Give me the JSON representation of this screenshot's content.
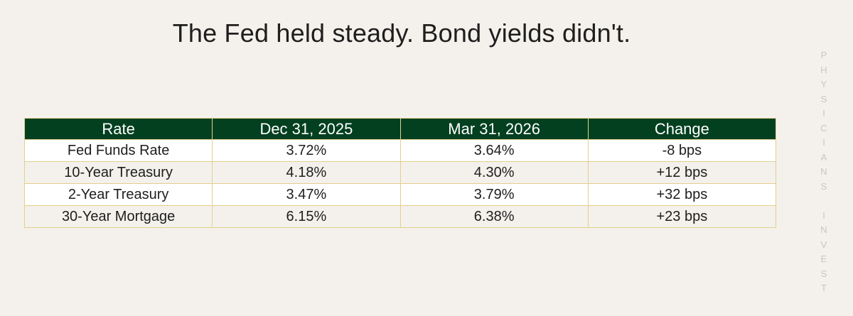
{
  "title": "The Fed held steady. Bond yields didn't.",
  "watermark": "PHYSICIANS INVEST",
  "table": {
    "headers": [
      "Rate",
      "Dec 31, 2025",
      "Mar 31, 2026",
      "Change"
    ],
    "rows": [
      [
        "Fed Funds Rate",
        "3.72%",
        "3.64%",
        "-8 bps"
      ],
      [
        "10-Year Treasury",
        "4.18%",
        "4.30%",
        "+12 bps"
      ],
      [
        "2-Year Treasury",
        "3.47%",
        "3.79%",
        "+32 bps"
      ],
      [
        "30-Year Mortgage",
        "6.15%",
        "6.38%",
        "+23 bps"
      ]
    ]
  },
  "colors": {
    "header_bg": "#024020",
    "border": "#e2cf8d",
    "page_bg": "#f4f1ec",
    "watermark": "#c6c6c1"
  }
}
